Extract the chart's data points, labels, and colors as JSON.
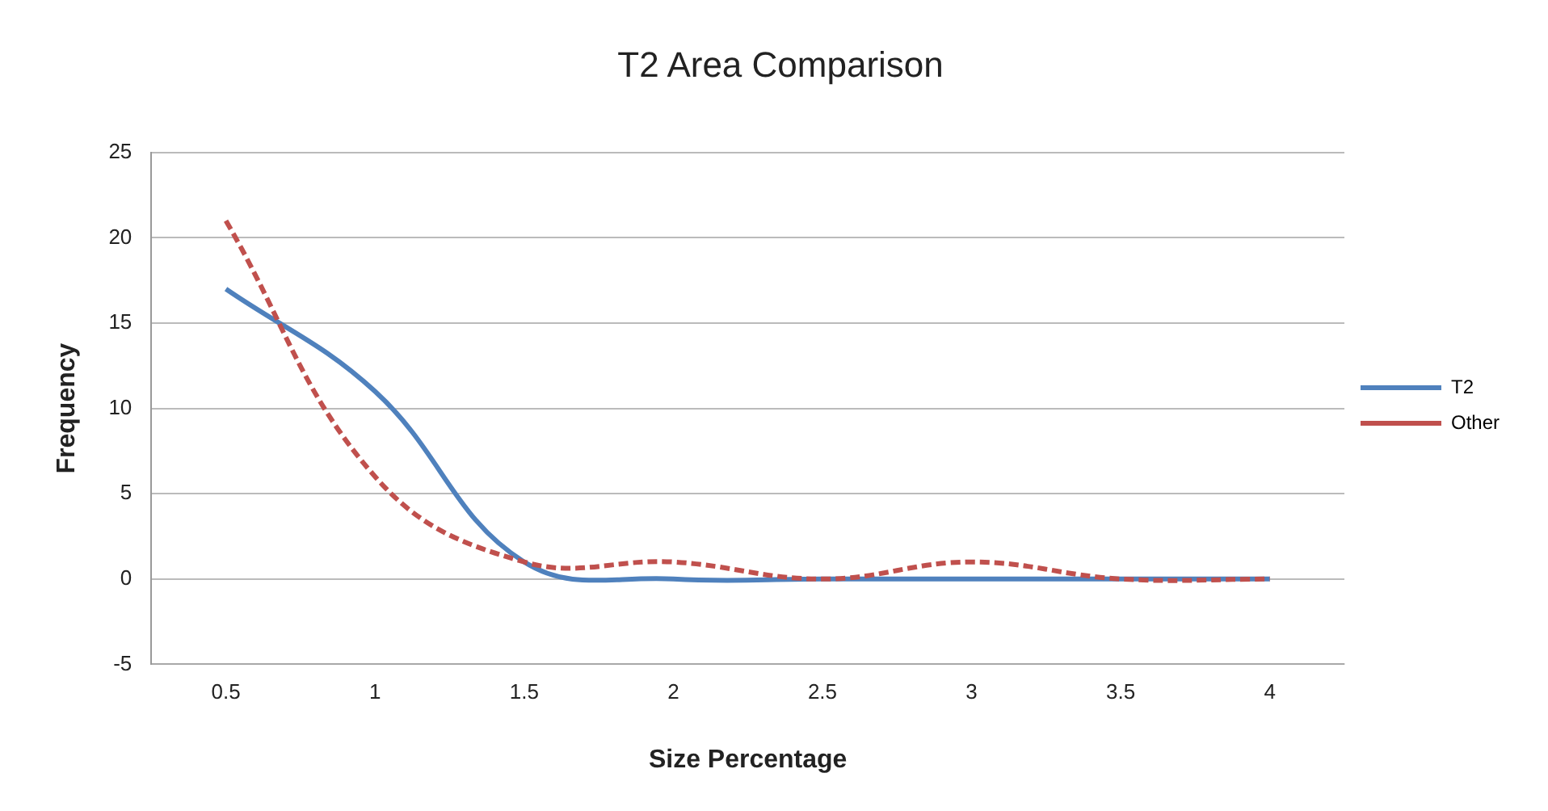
{
  "chart_data": {
    "type": "line",
    "title": "T2 Area Comparison",
    "xlabel": "Size Percentage",
    "ylabel": "Frequency",
    "categories": [
      "0.5",
      "1",
      "1.5",
      "2",
      "2.5",
      "3",
      "3.5",
      "4"
    ],
    "series": [
      {
        "name": "T2",
        "color": "#4f81bd",
        "values": [
          17,
          11,
          1,
          0,
          0,
          0,
          0,
          0
        ],
        "line_style": "solid"
      },
      {
        "name": "Other",
        "color": "#c0504d",
        "values": [
          21,
          6,
          1,
          1,
          0,
          1,
          0,
          0
        ],
        "line_style": "dashed"
      }
    ],
    "ylim": [
      -5,
      25
    ],
    "yticks": [
      -5,
      0,
      5,
      10,
      15,
      20,
      25
    ],
    "grid": "y",
    "legend": "right",
    "marker": "none"
  }
}
